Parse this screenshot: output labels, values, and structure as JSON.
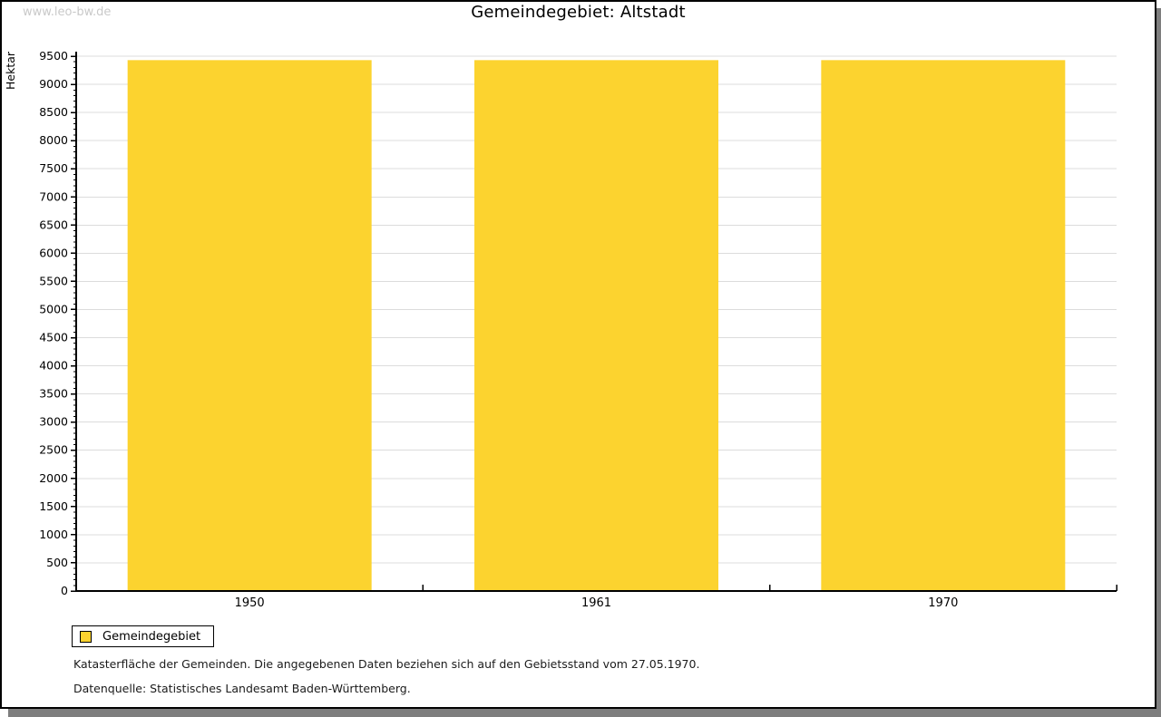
{
  "watermark": "www.leo-bw.de",
  "title": "Gemeindegebiet: Altstadt",
  "chart_data": {
    "type": "bar",
    "title": "Gemeindegebiet: Altstadt",
    "categories": [
      "1950",
      "1961",
      "1970"
    ],
    "series": [
      {
        "name": "Gemeindegebiet",
        "values": [
          9430,
          9430,
          9430
        ],
        "color": "#fcd32f"
      }
    ],
    "xlabel": "",
    "ylabel": "Hektar",
    "ylim": [
      0,
      9500
    ],
    "ytick_step": 500,
    "yminor_step": 100,
    "grid": true,
    "gridline_color": "#dcdcdc",
    "axis_color": "#000000",
    "legend_position": "bottom-left"
  },
  "legend": {
    "items": [
      {
        "label": "Gemeindegebiet",
        "color": "#fcd32f"
      }
    ]
  },
  "footnotes": [
    "Katasterfläche der Gemeinden. Die angegebenen Daten beziehen sich auf den Gebietsstand vom 27.05.1970.",
    "Datenquelle: Statistisches Landesamt Baden-Württemberg."
  ]
}
